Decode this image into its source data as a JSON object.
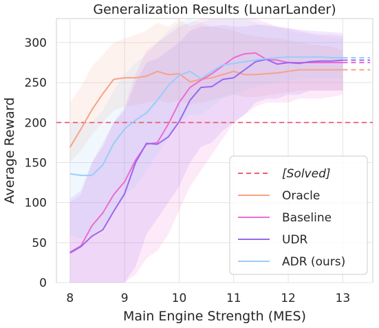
{
  "chart_data": {
    "type": "line",
    "title": "Generalization Results (LunarLander)",
    "xlabel": "Main Engine Strength (MES)",
    "ylabel": "Average Reward",
    "xlim": [
      7.75,
      13.55
    ],
    "ylim": [
      0,
      330
    ],
    "xticks": [
      8,
      9,
      10,
      11,
      12,
      13
    ],
    "yticks": [
      0,
      50,
      100,
      150,
      200,
      250,
      300
    ],
    "grid": true,
    "legend_position": "lower-right",
    "solved_line": {
      "label": "[Solved]",
      "y": 200,
      "color": "#ea5b78"
    },
    "x": [
      8.0,
      8.2,
      8.4,
      8.6,
      8.8,
      9.0,
      9.2,
      9.4,
      9.6,
      9.8,
      10.0,
      10.2,
      10.4,
      10.6,
      10.8,
      11.0,
      11.2,
      11.4,
      11.6,
      11.8,
      12.0,
      12.2,
      12.4,
      12.6,
      12.8,
      13.0
    ],
    "extension_x": [
      13.0,
      13.5
    ],
    "series": [
      {
        "name": "Oracle",
        "color": "#f9a185",
        "values": [
          169,
          192,
          216,
          236,
          254,
          256,
          256,
          258,
          264,
          260,
          261,
          251,
          254,
          256,
          260,
          264,
          260,
          260,
          261,
          262,
          264,
          266,
          266,
          266,
          266,
          266
        ],
        "lower": [
          150,
          165,
          185,
          200,
          215,
          220,
          222,
          225,
          228,
          225,
          228,
          222,
          225,
          228,
          232,
          235,
          232,
          232,
          234,
          236,
          238,
          240,
          240,
          240,
          240,
          240
        ],
        "upper": [
          225,
          245,
          270,
          285,
          300,
          305,
          310,
          315,
          325,
          320,
          330,
          320,
          325,
          320,
          318,
          315,
          310,
          308,
          306,
          305,
          303,
          300,
          298,
          296,
          295,
          290
        ]
      },
      {
        "name": "Baseline",
        "color": "#ee6ad2",
        "values": [
          38,
          46,
          71,
          87,
          110,
          126,
          153,
          173,
          175,
          198,
          225,
          244,
          253,
          261,
          271,
          281,
          286,
          287,
          279,
          278,
          275,
          275,
          275,
          275,
          275,
          275
        ],
        "lower": [
          0,
          0,
          0,
          0,
          0,
          0,
          10,
          30,
          40,
          60,
          90,
          120,
          140,
          160,
          180,
          200,
          210,
          220,
          225,
          225,
          225,
          230,
          230,
          230,
          232,
          235
        ],
        "upper": [
          100,
          110,
          150,
          175,
          200,
          220,
          260,
          290,
          300,
          310,
          320,
          325,
          330,
          330,
          330,
          330,
          330,
          330,
          325,
          320,
          318,
          315,
          312,
          310,
          310,
          308
        ]
      },
      {
        "name": "UDR",
        "color": "#9966f0",
        "values": [
          37,
          45,
          58,
          66,
          89,
          111,
          150,
          174,
          173,
          182,
          201,
          228,
          244,
          245,
          254,
          256,
          266,
          276,
          279,
          273,
          275,
          274,
          276,
          277,
          277,
          278
        ],
        "lower": [
          0,
          0,
          0,
          0,
          0,
          0,
          20,
          60,
          80,
          100,
          120,
          150,
          170,
          175,
          190,
          200,
          210,
          225,
          230,
          230,
          235,
          235,
          240,
          240,
          240,
          240
        ],
        "upper": [
          105,
          115,
          150,
          170,
          200,
          215,
          250,
          275,
          280,
          290,
          300,
          315,
          320,
          320,
          322,
          320,
          320,
          322,
          322,
          320,
          318,
          316,
          315,
          314,
          313,
          312
        ]
      },
      {
        "name": "ADR (ours)",
        "color": "#98cdfb",
        "values": [
          136,
          134,
          134,
          147,
          174,
          192,
          203,
          212,
          228,
          246,
          259,
          264,
          255,
          264,
          272,
          274,
          276,
          278,
          280,
          281,
          282,
          282,
          282,
          282,
          281,
          281
        ],
        "lower": [
          60,
          55,
          60,
          70,
          90,
          110,
          120,
          140,
          160,
          180,
          200,
          210,
          210,
          220,
          230,
          235,
          240,
          245,
          248,
          250,
          252,
          254,
          255,
          255,
          255,
          255
        ],
        "upper": [
          200,
          200,
          200,
          215,
          240,
          260,
          275,
          285,
          300,
          315,
          325,
          330,
          325,
          330,
          330,
          330,
          330,
          325,
          320,
          318,
          315,
          312,
          310,
          308,
          306,
          305
        ]
      }
    ]
  }
}
